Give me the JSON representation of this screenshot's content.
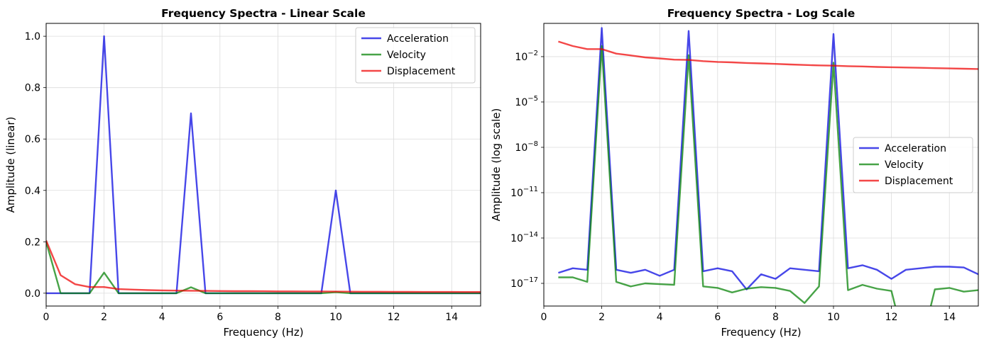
{
  "chart_data": [
    {
      "type": "line",
      "title": "Frequency Spectra - Linear Scale",
      "xlabel": "Frequency (Hz)",
      "ylabel": "Amplitude (linear)",
      "xlim": [
        0,
        15
      ],
      "ylim": [
        -0.05,
        1.05
      ],
      "yscale": "linear",
      "grid": true,
      "legend_loc": "upper-right",
      "xticks": [
        0,
        2,
        4,
        6,
        8,
        10,
        12,
        14
      ],
      "xtick_labels": [
        "0",
        "2",
        "4",
        "6",
        "8",
        "10",
        "12",
        "14"
      ],
      "yticks": [
        0.0,
        0.2,
        0.4,
        0.6,
        0.8,
        1.0
      ],
      "ytick_labels": [
        "0.0",
        "0.2",
        "0.4",
        "0.6",
        "0.8",
        "1.0"
      ],
      "x": [
        0,
        0.5,
        1,
        1.5,
        2,
        2.5,
        3,
        3.5,
        4,
        4.5,
        5,
        5.5,
        6,
        6.5,
        7,
        7.5,
        8,
        8.5,
        9,
        9.5,
        10,
        10.5,
        11,
        11.5,
        12,
        12.5,
        13,
        13.5,
        14,
        14.5,
        15
      ],
      "series": [
        {
          "name": "Acceleration",
          "color": "#0000e0",
          "values": [
            0,
            0,
            0,
            0,
            1.0,
            0,
            0,
            0,
            0,
            0,
            0.7,
            0,
            0,
            0,
            0,
            0,
            0,
            0,
            0,
            0,
            0.4,
            0,
            0,
            0,
            0,
            0,
            0,
            0,
            0,
            0,
            0
          ]
        },
        {
          "name": "Velocity",
          "color": "#008000",
          "values": [
            0.2,
            0,
            0,
            0,
            0.08,
            0,
            0,
            0,
            0,
            0,
            0.023,
            0,
            0,
            0,
            0,
            0,
            0,
            0,
            0,
            0,
            0.004,
            0,
            0,
            0,
            0,
            0,
            0,
            0,
            0,
            0,
            0
          ]
        },
        {
          "name": "Displacement",
          "color": "#ee0000",
          "values": [
            0.205,
            0.07,
            0.035,
            0.024,
            0.024,
            0.016,
            0.014,
            0.012,
            0.011,
            0.01,
            0.0095,
            0.009,
            0.0085,
            0.008,
            0.0078,
            0.0075,
            0.0072,
            0.007,
            0.0068,
            0.0065,
            0.0063,
            0.006,
            0.0058,
            0.0056,
            0.0054,
            0.0052,
            0.005,
            0.0049,
            0.0048,
            0.0047,
            0.0046
          ]
        }
      ]
    },
    {
      "type": "line",
      "title": "Frequency Spectra - Log Scale",
      "xlabel": "Frequency (Hz)",
      "ylabel": "Amplitude (log scale)",
      "xlim": [
        0,
        15
      ],
      "ylim_log10": [
        -18.5,
        0.2
      ],
      "yscale": "log",
      "grid": true,
      "legend_loc": "center-right",
      "xticks": [
        0,
        2,
        4,
        6,
        8,
        10,
        12,
        14
      ],
      "xtick_labels": [
        "0",
        "2",
        "4",
        "6",
        "8",
        "10",
        "12",
        "14"
      ],
      "yticks_log10": [
        -2,
        -5,
        -8,
        -11,
        -14,
        -17
      ],
      "ytick_base": "10",
      "ytick_exponents": [
        "−2",
        "−5",
        "−8",
        "−11",
        "−14",
        "−17"
      ],
      "x": [
        0.5,
        1,
        1.5,
        2,
        2.5,
        3,
        3.5,
        4,
        4.5,
        5,
        5.5,
        6,
        6.5,
        7,
        7.5,
        8,
        8.5,
        9,
        9.5,
        10,
        10.5,
        11,
        11.5,
        12,
        12.5,
        13,
        13.5,
        14,
        14.5,
        15
      ],
      "series": [
        {
          "name": "Acceleration",
          "color": "#0000e0",
          "log10_values": [
            -16.3,
            -16.0,
            -16.1,
            -0.1,
            -16.1,
            -16.3,
            -16.1,
            -16.5,
            -16.1,
            -0.3,
            -16.2,
            -16.0,
            -16.2,
            -17.4,
            -16.4,
            -16.7,
            -16.0,
            -16.1,
            -16.2,
            -0.5,
            -16.0,
            -15.8,
            -16.1,
            -16.7,
            -16.1,
            -16.0,
            -15.9,
            -15.9,
            -15.95,
            -16.4
          ]
        },
        {
          "name": "Velocity",
          "color": "#008000",
          "log10_values": [
            -16.6,
            -16.6,
            -16.9,
            -1.3,
            -16.9,
            -17.2,
            -17.0,
            -17.05,
            -17.1,
            -1.9,
            -17.2,
            -17.3,
            -17.6,
            -17.35,
            -17.25,
            -17.3,
            -17.5,
            -18.3,
            -17.2,
            -2.4,
            -17.45,
            -17.1,
            -17.35,
            -17.5,
            null,
            null,
            -17.4,
            -17.3,
            -17.55,
            -17.45
          ]
        },
        {
          "name": "Displacement",
          "color": "#ee0000",
          "log10_values": [
            -1.0,
            -1.3,
            -1.5,
            -1.5,
            -1.8,
            -1.92,
            -2.05,
            -2.12,
            -2.2,
            -2.22,
            -2.3,
            -2.35,
            -2.38,
            -2.42,
            -2.45,
            -2.48,
            -2.52,
            -2.55,
            -2.58,
            -2.6,
            -2.63,
            -2.65,
            -2.68,
            -2.7,
            -2.72,
            -2.74,
            -2.76,
            -2.78,
            -2.8,
            -2.82
          ]
        }
      ]
    }
  ]
}
